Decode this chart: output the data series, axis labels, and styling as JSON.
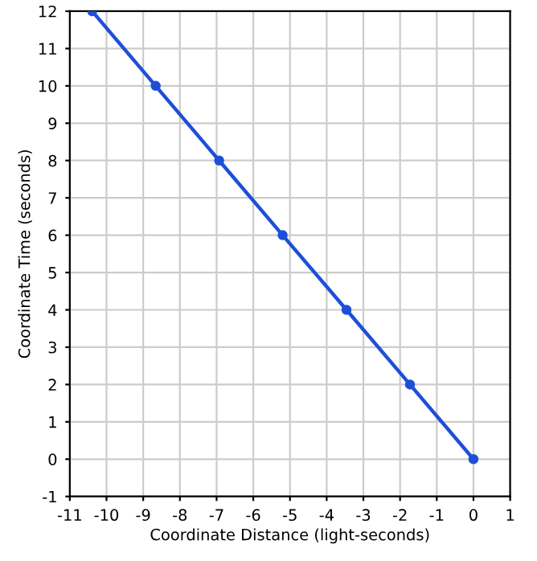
{
  "chart_data": {
    "type": "line",
    "xlabel": "Coordinate Distance (light-seconds)",
    "ylabel": "Coordinate Time (seconds)",
    "x": [
      0,
      -1.73,
      -3.46,
      -5.2,
      -6.93,
      -8.66,
      -10.39
    ],
    "series": [
      {
        "color": "#1e4fd8",
        "values": [
          0,
          2,
          4,
          6,
          8,
          10,
          12
        ]
      }
    ],
    "xlim": [
      -11,
      1
    ],
    "ylim": [
      -1,
      12
    ],
    "xticks": [
      -11,
      -10,
      -9,
      -8,
      -7,
      -6,
      -5,
      -4,
      -3,
      -2,
      -1,
      0,
      1
    ],
    "yticks": [
      -1,
      0,
      1,
      2,
      3,
      4,
      5,
      6,
      7,
      8,
      9,
      10,
      11,
      12
    ],
    "grid": true,
    "marker": "circle",
    "line_style": "solid"
  }
}
